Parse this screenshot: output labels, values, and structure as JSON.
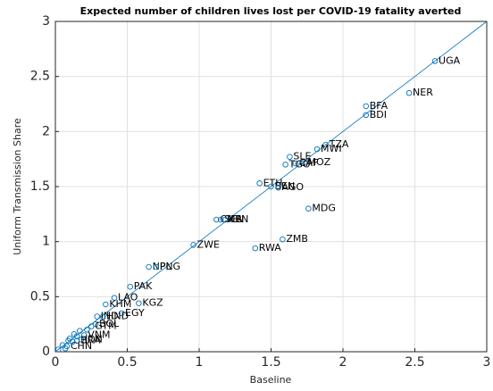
{
  "chart_data": {
    "type": "scatter",
    "title": "Expected number of children lives lost per COVID-19 fatality averted",
    "xlabel": "Baseline",
    "ylabel": "Uniform Transmission Share",
    "xlim": [
      0,
      3
    ],
    "ylim": [
      0,
      3
    ],
    "xticks": [
      0,
      0.5,
      1,
      1.5,
      2,
      2.5,
      3
    ],
    "yticks": [
      0,
      0.5,
      1,
      1.5,
      2,
      2.5,
      3
    ],
    "grid": true,
    "color": "#0072bd",
    "reference_line": {
      "x": [
        0,
        3
      ],
      "y": [
        0,
        3
      ]
    },
    "labels": [
      "UGA",
      "NER",
      "BFA",
      "BDI",
      "TZA",
      "MWI",
      "SLE",
      "MOZ",
      "TGO",
      "CAF",
      "ETH",
      "BEN",
      "AGO",
      "MDG",
      "CMR",
      "SEN",
      "KEN",
      "ZMB",
      "RWA",
      "ZWE",
      "NPL",
      "PNG",
      "PAK",
      "LAO",
      "KGZ",
      "KHM",
      "EGY",
      "IND",
      "HND",
      "BOL",
      "GTM",
      "VNM",
      "IDN",
      "BRA",
      "CHN",
      null,
      null,
      null,
      null,
      null,
      null,
      null,
      null,
      null,
      null
    ],
    "x": [
      2.64,
      2.46,
      2.16,
      2.16,
      1.88,
      1.82,
      1.63,
      1.73,
      1.6,
      1.67,
      1.42,
      1.5,
      1.55,
      1.76,
      1.12,
      1.15,
      1.18,
      1.58,
      1.39,
      0.96,
      0.65,
      0.7,
      0.52,
      0.41,
      0.58,
      0.35,
      0.46,
      0.29,
      0.33,
      0.28,
      0.25,
      0.2,
      0.18,
      0.15,
      0.08,
      0.05,
      0.1,
      0.12,
      0.07,
      0.15,
      0.22,
      0.02,
      0.09,
      0.13,
      0.17
    ],
    "y": [
      2.64,
      2.35,
      2.23,
      2.15,
      1.88,
      1.84,
      1.77,
      1.72,
      1.7,
      1.71,
      1.53,
      1.5,
      1.49,
      1.3,
      1.2,
      1.2,
      1.2,
      1.02,
      0.94,
      0.97,
      0.77,
      0.77,
      0.59,
      0.49,
      0.44,
      0.43,
      0.35,
      0.32,
      0.32,
      0.25,
      0.23,
      0.15,
      0.11,
      0.1,
      0.05,
      0.06,
      0.12,
      0.09,
      0.03,
      0.14,
      0.2,
      0.02,
      0.1,
      0.16,
      0.19
    ]
  }
}
